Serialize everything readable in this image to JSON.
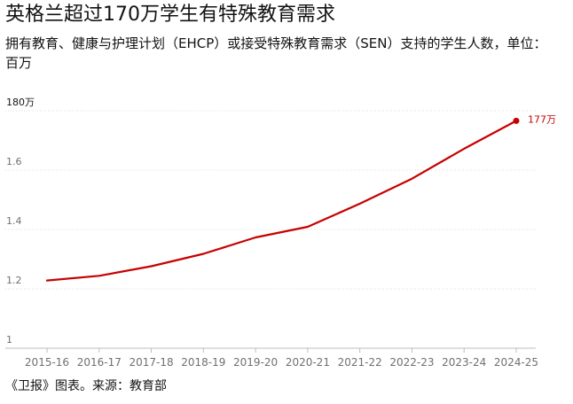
{
  "header": {
    "title": "英格兰超过170万学生有特殊教育需求",
    "subtitle": "拥有教育、健康与护理计划（EHCP）或接受特殊教育需求（SEN）支持的学生人数，单位：百万"
  },
  "footer": {
    "source": "《卫报》图表。来源：教育部"
  },
  "colors": {
    "line": "#c70000",
    "grid": "#dcdcdc",
    "tick_text": "#707070",
    "baseline": "#bdbdbd"
  },
  "chart_data": {
    "type": "line",
    "categories": [
      "2015-16",
      "2016-17",
      "2017-18",
      "2018-19",
      "2019-20",
      "2020-21",
      "2021-22",
      "2022-23",
      "2023-24",
      "2024-25"
    ],
    "series": [
      {
        "values": [
          1.228,
          1.244,
          1.276,
          1.318,
          1.373,
          1.409,
          1.487,
          1.571,
          1.672,
          1.766
        ]
      }
    ],
    "ylim": [
      1.0,
      1.8
    ],
    "y_ticks": [
      1.0,
      1.2,
      1.4,
      1.6,
      1.8
    ],
    "y_tick_labels": [
      "1",
      "1.2",
      "1.4",
      "1.6",
      "180万"
    ],
    "end_label": "177万",
    "grid": "horizontal",
    "xlabel": "",
    "ylabel": ""
  }
}
